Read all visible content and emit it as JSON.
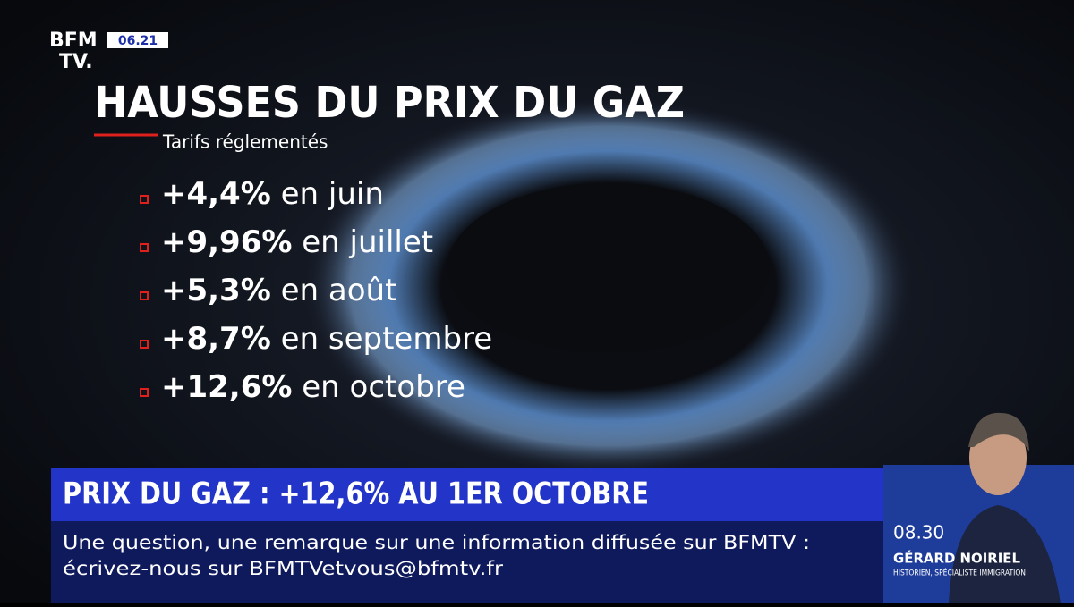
{
  "logo": {
    "line1": "BFM",
    "line2": "TV.",
    "clock": "06.21"
  },
  "header": {
    "title": "HAUSSES DU PRIX DU GAZ",
    "subtitle": "Tarifs réglementés"
  },
  "items": [
    {
      "value": "+4,4%",
      "text": "en juin"
    },
    {
      "value": "+9,96%",
      "text": "en juillet"
    },
    {
      "value": "+5,3%",
      "text": "en août"
    },
    {
      "value": "+8,7%",
      "text": "en septembre"
    },
    {
      "value": "+12,6%",
      "text": "en octobre"
    }
  ],
  "banner": {
    "headline": "PRIX DU GAZ : +12,6% AU 1ER OCTOBRE"
  },
  "ticker": {
    "line1": "Une question, une remarque sur une information diffusée sur BFMTV :",
    "line2": "écrivez-nous sur BFMTVetvous@bfmtv.fr"
  },
  "guest": {
    "time": "08.30",
    "name": "GÉRARD NOIRIEL",
    "role": "HISTORIEN, SPÉCIALISTE IMMIGRATION"
  }
}
